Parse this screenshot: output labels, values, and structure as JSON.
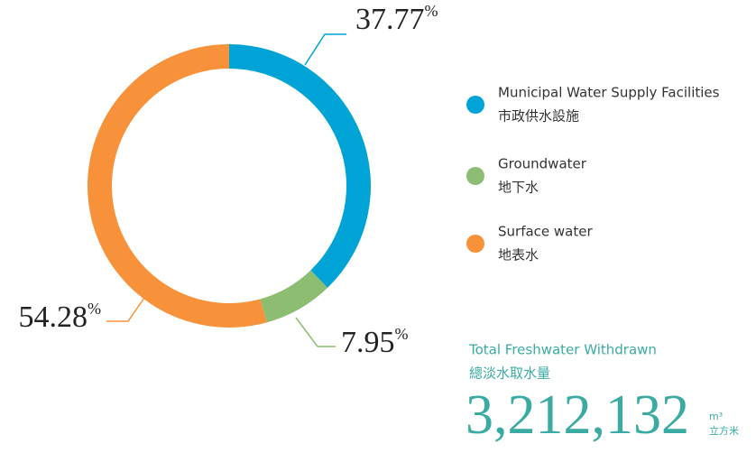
{
  "chart_data": {
    "type": "donut",
    "categories": [
      "Municipal Water Supply Facilities",
      "Groundwater",
      "Surface water"
    ],
    "categories_zh": [
      "市政供水設施",
      "地下水",
      "地表水"
    ],
    "values": [
      37.77,
      7.95,
      54.28
    ],
    "unit": "%",
    "colors": [
      "#00a3d6",
      "#8cbd72",
      "#f7923a"
    ],
    "total_label": "Total Freshwater Withdrawn",
    "total_label_zh": "總淡水取水量",
    "total": {
      "value": 3212132,
      "label": "3,212,132"
    },
    "total_unit": "m³",
    "total_unit_zh": "立方米"
  }
}
